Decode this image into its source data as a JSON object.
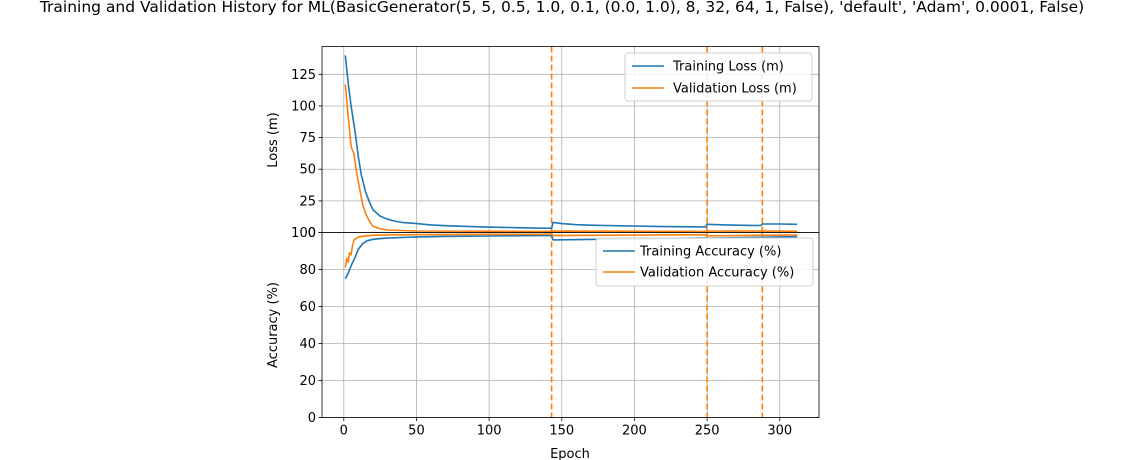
{
  "colors": {
    "training": "#1f77b4",
    "validation": "#ff7f0e",
    "grid": "#b0b0b0",
    "axis": "#000000"
  },
  "chart_data": {
    "type": "line",
    "title": "Training and Validation History for ML(BasicGenerator(5, 5, 0.5, 1.0, 0.1, (0.0, 1.0), 8, 32, 64, 1, False), 'default', 'Adam', 0.0001, False)",
    "xlabel": "Epoch",
    "xlim": [
      -15,
      327
    ],
    "xticks": [
      0,
      50,
      100,
      150,
      200,
      250,
      300
    ],
    "grid": true,
    "vlines": [
      143,
      250,
      288
    ],
    "panels": [
      {
        "name": "loss",
        "ylabel": "Loss (m)",
        "ylim": [
          0,
          147
        ],
        "yticks": [
          0,
          25,
          50,
          75,
          100,
          125
        ],
        "legend_position": "upper right",
        "series": [
          {
            "name": "Training Loss (m)",
            "color_key": "training",
            "x": [
              1,
              3,
              5,
              8,
              10,
              12,
              15,
              18,
              20,
              25,
              30,
              35,
              40,
              50,
              60,
              70,
              80,
              90,
              100,
              110,
              120,
              130,
              143,
              144,
              150,
              160,
              170,
              180,
              190,
              200,
              210,
              220,
              230,
              240,
              249,
              250,
              260,
              270,
              280,
              287,
              288,
              300,
              312
            ],
            "y": [
              140,
              118,
              100,
              78,
              60,
              46,
              32,
              23,
              18,
              13,
              10.5,
              9,
              8,
              7,
              6,
              5.4,
              5,
              4.6,
              4.3,
              4,
              3.8,
              3.5,
              3.3,
              8,
              7,
              6.2,
              5.8,
              5.5,
              5.3,
              5.1,
              4.9,
              4.7,
              4.6,
              4.5,
              4.4,
              6.5,
              6.1,
              5.8,
              5.6,
              5.5,
              6.7,
              6.7,
              6.5
            ]
          },
          {
            "name": "Validation Loss (m)",
            "color_key": "validation",
            "x": [
              1,
              3,
              5,
              7,
              9,
              11,
              13,
              15,
              18,
              20,
              25,
              30,
              40,
              50,
              100,
              143,
              144,
              200,
              249,
              250,
              288,
              312
            ],
            "y": [
              117,
              92,
              68,
              62,
              46,
              34,
              22,
              15,
              8,
              5,
              3,
              2,
              1.6,
              1.2,
              1,
              0.9,
              1.1,
              1,
              0.9,
              1.2,
              1.1,
              1
            ]
          }
        ]
      },
      {
        "name": "accuracy",
        "ylabel": "Accuracy (%)",
        "ylim": [
          0,
          100
        ],
        "yticks": [
          0,
          20,
          40,
          60,
          80,
          100
        ],
        "legend_position": "upper right",
        "series": [
          {
            "name": "Training Accuracy (%)",
            "color_key": "training",
            "x": [
              1,
              3,
              5,
              8,
              10,
              13,
              16,
              20,
              25,
              30,
              40,
              50,
              70,
              100,
              143,
              144,
              200,
              249,
              250,
              288,
              312
            ],
            "y": [
              75,
              78,
              82,
              87,
              91,
              94,
              95.5,
              96.3,
              96.7,
              97,
              97.3,
              97.6,
              97.9,
              98.1,
              98.4,
              96,
              96.6,
              97.1,
              96.9,
              97.4,
              97.8
            ]
          },
          {
            "name": "Validation Accuracy (%)",
            "color_key": "validation",
            "x": [
              1,
              2,
              3,
              4,
              5,
              6,
              7,
              10,
              15,
              20,
              30,
              50,
              100,
              143,
              144,
              200,
              249,
              250,
              288,
              312
            ],
            "y": [
              81,
              86,
              84,
              89,
              88,
              93,
              96,
              97.5,
              98.2,
              98.5,
              98.7,
              98.8,
              99,
              99,
              98.3,
              98.6,
              98.8,
              98.2,
              98.5,
              98.7
            ]
          }
        ]
      }
    ]
  }
}
